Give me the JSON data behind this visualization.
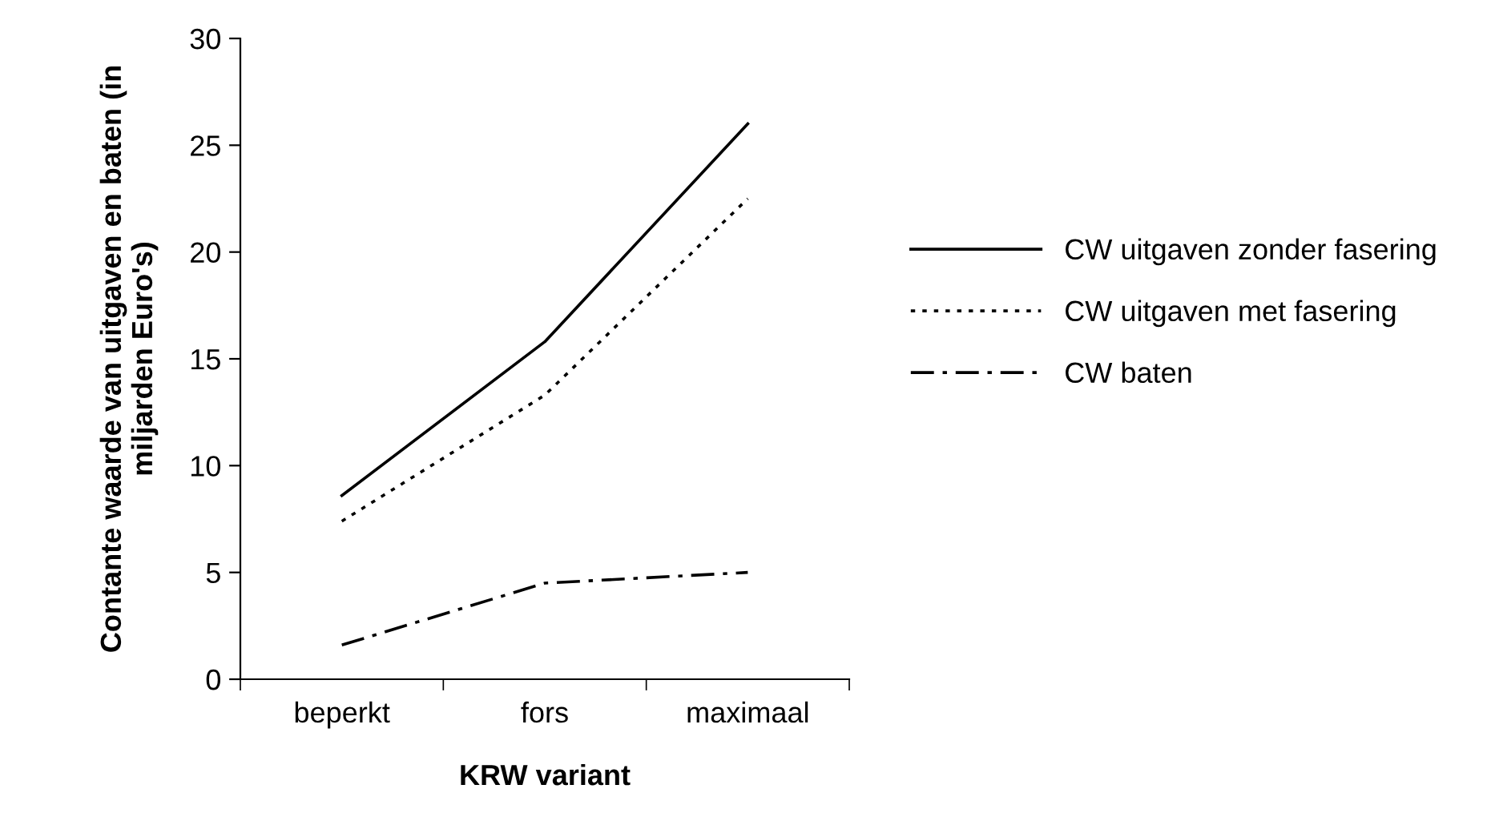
{
  "chart_data": {
    "type": "line",
    "xlabel": "KRW variant",
    "ylabel": "Contante waarde van uitgaven en baten (in miljarden Euro's)",
    "categories": [
      "beperkt",
      "fors",
      "maximaal"
    ],
    "ylim": [
      0,
      30
    ],
    "yticks": [
      0,
      5,
      10,
      15,
      20,
      25,
      30
    ],
    "grid": false,
    "legend": "right",
    "marker": "none",
    "series": [
      {
        "name": "CW uitgaven zonder fasering",
        "color": "#000000",
        "line_style": "solid",
        "values": [
          8.6,
          15.8,
          26.0
        ]
      },
      {
        "name": "CW uitgaven met fasering",
        "color": "#000000",
        "line_style": "dotted",
        "values": [
          7.4,
          13.3,
          22.5
        ]
      },
      {
        "name": "CW baten",
        "color": "#000000",
        "line_style": "dashdot",
        "values": [
          1.6,
          4.5,
          5.0
        ]
      }
    ]
  }
}
